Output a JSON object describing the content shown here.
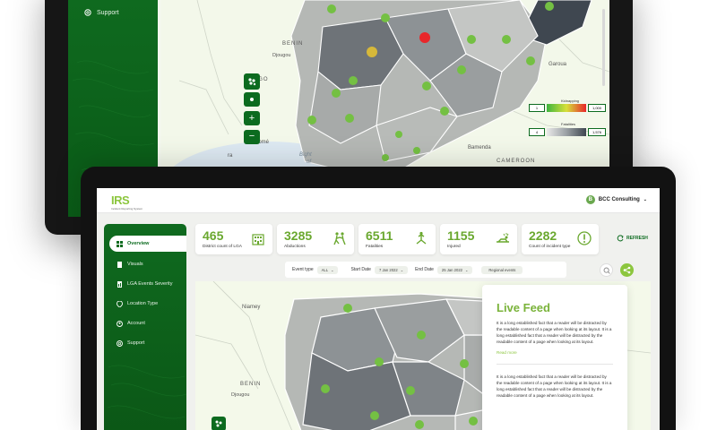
{
  "back_monitor": {
    "sidebar_item": "Support",
    "map_labels": {
      "benin": "BENIN",
      "djougou": "Djougou",
      "togo": "TOGO",
      "garoua": "Garoua",
      "bamenda": "Bamenda",
      "cameroon": "CAMEROON",
      "bight": "Bight\nof",
      "lome": "Lomé",
      "ra": "ra"
    },
    "legend": {
      "kidnapping": {
        "label": "Kidnapping",
        "min": "1",
        "max": "1,000"
      },
      "fatalities": {
        "label": "Fatalities",
        "min": "4",
        "max": "1,576"
      }
    }
  },
  "header": {
    "logo_main": "IRS",
    "logo_sub": "Incident Reporting System",
    "user_name": "BCC Consulting",
    "avatar_letter": "B"
  },
  "sidebar": {
    "items": [
      {
        "label": "Overview",
        "icon": "grid-icon"
      },
      {
        "label": "Visuals",
        "icon": "document-icon"
      },
      {
        "label": "LGA Events Severity",
        "icon": "chart-doc-icon"
      },
      {
        "label": "Location Type",
        "icon": "pin-icon"
      },
      {
        "label": "Account",
        "icon": "user-icon"
      },
      {
        "label": "Support",
        "icon": "support-icon"
      }
    ]
  },
  "kpis": [
    {
      "value": "465",
      "label": "District count of LGA",
      "icon": "building-icon"
    },
    {
      "value": "3285",
      "label": "Abductions",
      "icon": "abduction-icon"
    },
    {
      "value": "6511",
      "label": "Fatalities",
      "icon": "fatality-icon"
    },
    {
      "value": "1155",
      "label": "Injured",
      "icon": "injured-icon"
    },
    {
      "value": "2282",
      "label": "Count of incident type",
      "icon": "alert-icon"
    }
  ],
  "refresh_label": "REFRESH",
  "filters": {
    "event_type_label": "Event type",
    "event_type_value": "ALL",
    "start_date_label": "Start Date",
    "start_date_value": "7 Jan 2022",
    "end_date_label": "End Date",
    "end_date_value": "25 Jan 2022",
    "regional_label": "Regional events"
  },
  "map_labels": {
    "niamey": "Niamey",
    "benin": "BENIN",
    "djougou": "Djougou"
  },
  "live_feed": {
    "title": "Live Feed",
    "entries": [
      {
        "text": "It is a long established fact that a reader will be distracted by the readable content of a page when looking at its layout.  It is a long established fact that a reader will be distracted by the readable content of a page when looking at its layout.",
        "more": "Read more"
      },
      {
        "text": "It is a long established fact that a reader will be distracted by the readable content of a page when looking at its layout.  It is a long established fact that a reader will be distracted by the readable content of a page when looking at its layout.",
        "more": ""
      }
    ]
  },
  "colors": {
    "brand_green": "#0c6b1f",
    "accent_green": "#8cc63e",
    "kpi_green": "#6aa82f",
    "alert_red": "#e8262a",
    "warn_yellow": "#d6b83a"
  }
}
